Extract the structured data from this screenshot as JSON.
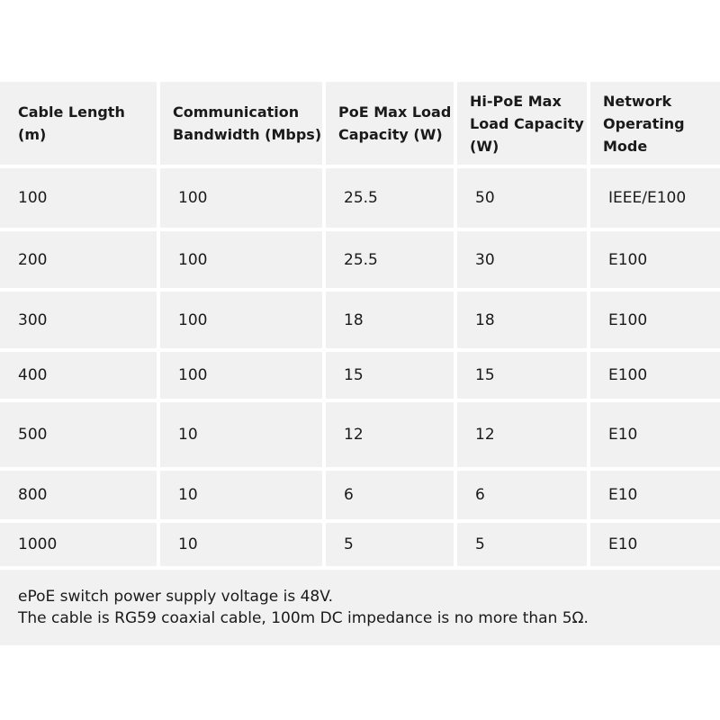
{
  "table": {
    "headers": [
      "Cable Length (m)",
      "Communication Bandwidth (Mbps)",
      "PoE Max Load Capacity (W)",
      "Hi-PoE Max Load Capacity (W)",
      "Network Operating Mode"
    ],
    "rows": [
      [
        "100",
        "100",
        "25.5",
        "50",
        "IEEE/E100"
      ],
      [
        "200",
        "100",
        "25.5",
        "30",
        "E100"
      ],
      [
        "300",
        "100",
        "18",
        "18",
        "E100"
      ],
      [
        "400",
        "100",
        "15",
        "15",
        "E100"
      ],
      [
        "500",
        "10",
        "12",
        "12",
        "E10"
      ],
      [
        "800",
        "10",
        "6",
        "6",
        "E10"
      ],
      [
        "1000",
        "10",
        "5",
        "5",
        "E10"
      ]
    ]
  },
  "notes": [
    "ePoE switch power supply voltage is 48V.",
    "The cable is RG59 coaxial cable, 100m DC impedance is no more than 5Ω."
  ]
}
